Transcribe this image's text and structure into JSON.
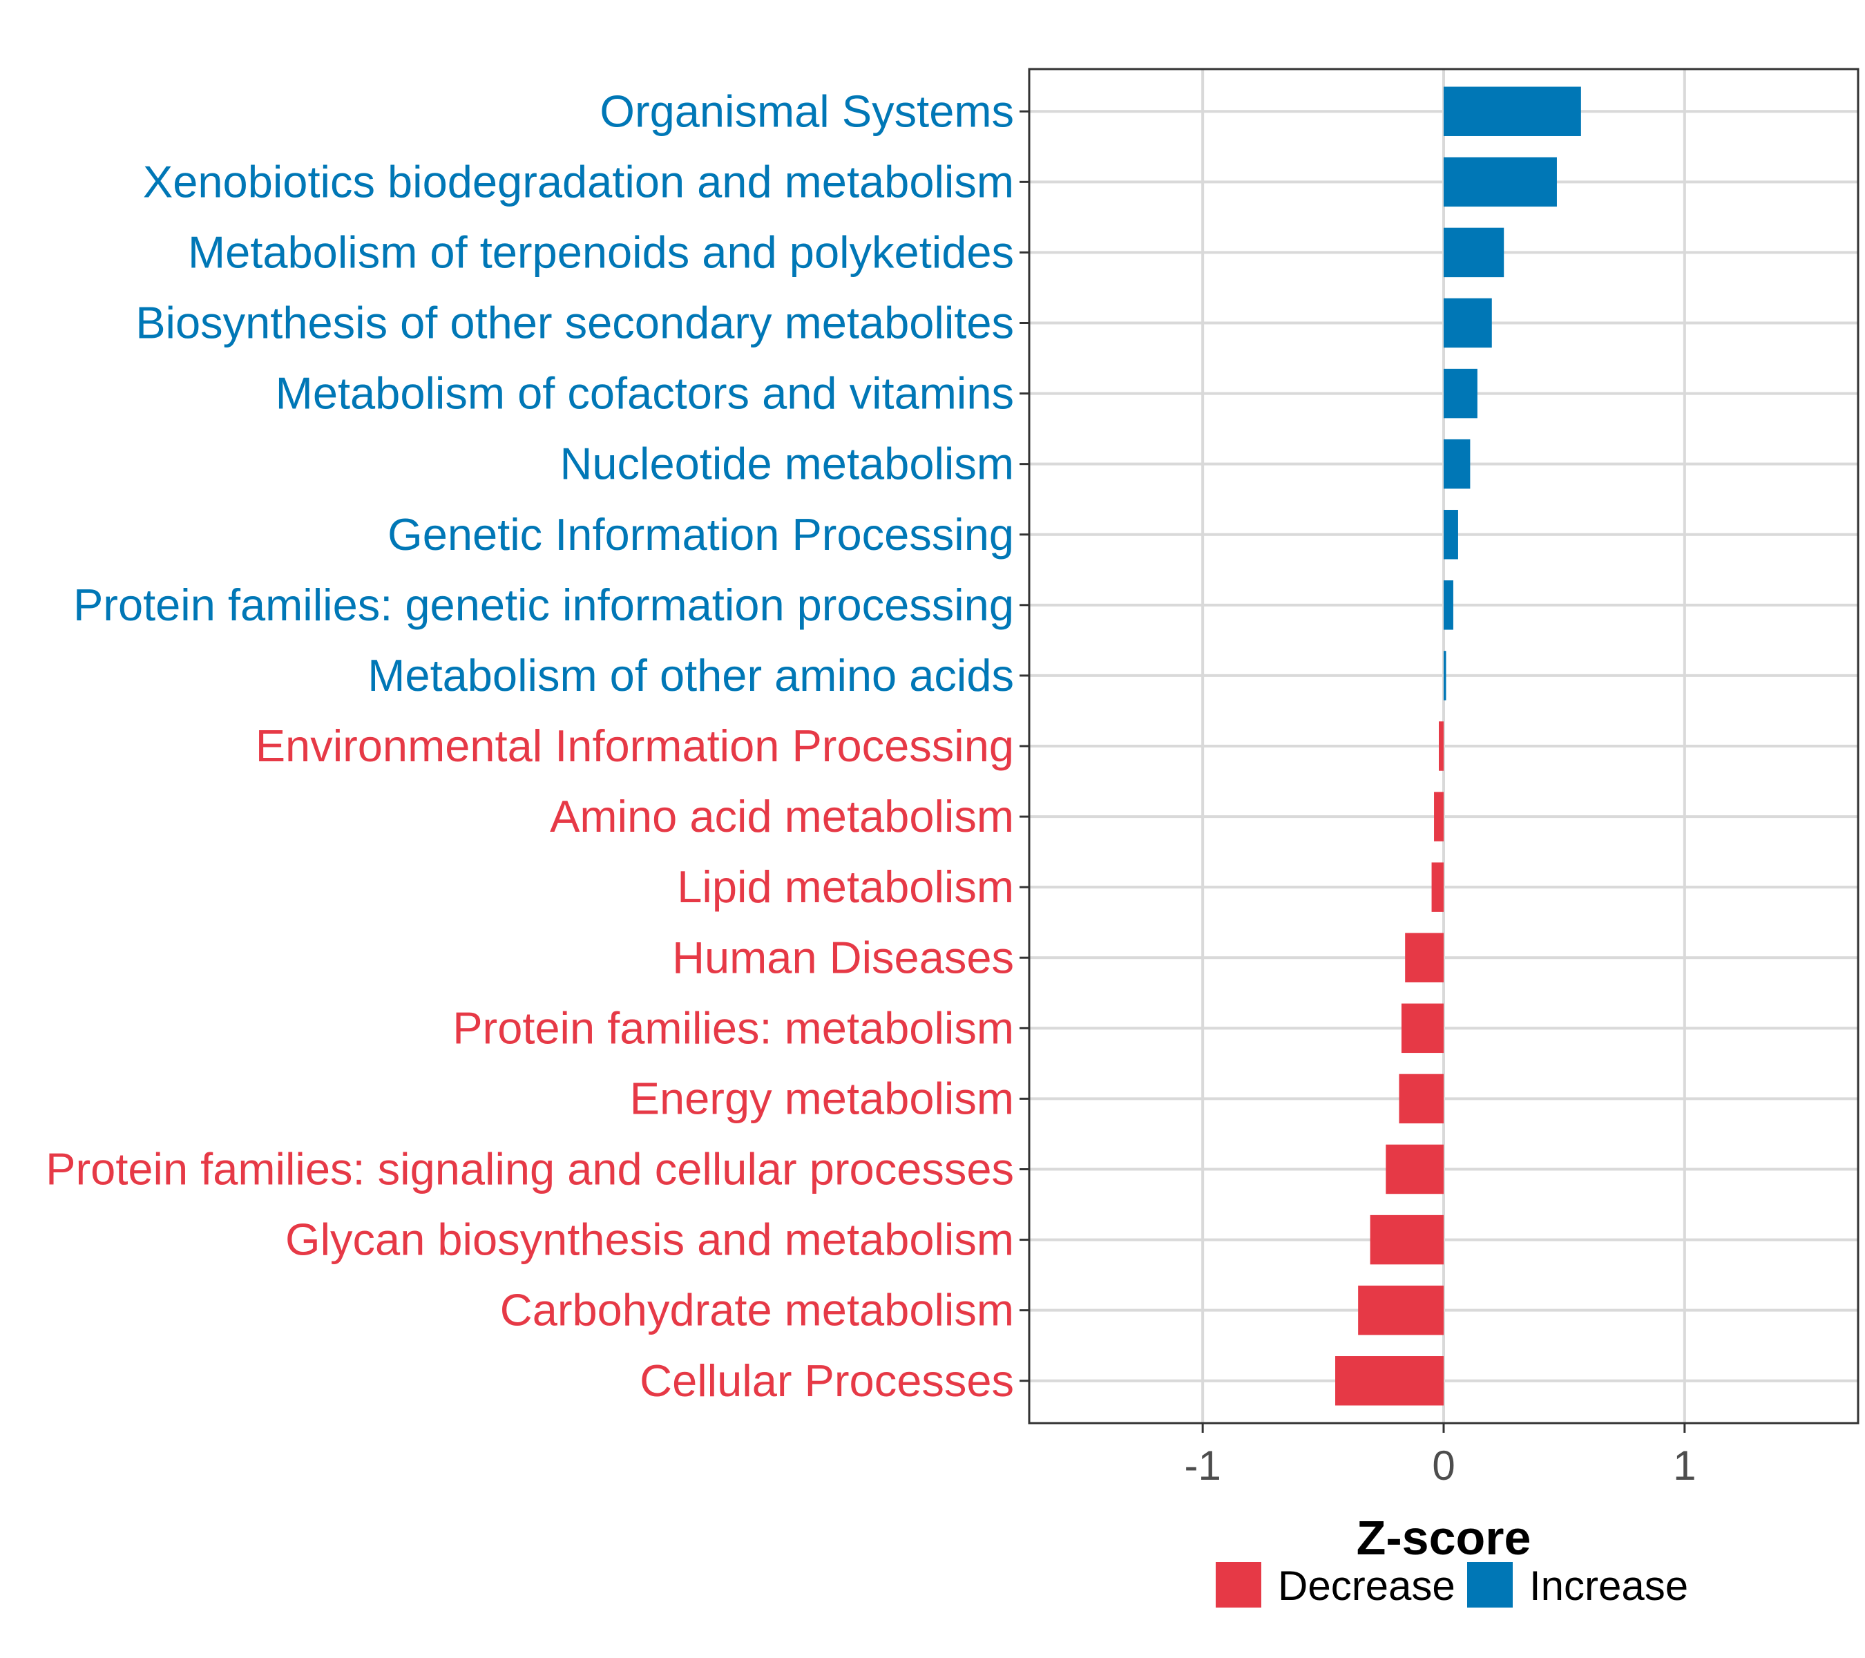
{
  "chart_data": {
    "type": "bar",
    "orientation": "horizontal",
    "categories": [
      "Organismal Systems",
      "Xenobiotics biodegradation and metabolism",
      "Metabolism of terpenoids and polyketides",
      "Biosynthesis of other secondary metabolites",
      "Metabolism of cofactors and vitamins",
      "Nucleotide metabolism",
      "Genetic Information Processing",
      "Protein families: genetic information processing",
      "Metabolism of other amino acids",
      "Environmental Information Processing",
      "Amino acid metabolism",
      "Lipid metabolism",
      "Human Diseases",
      "Protein families: metabolism",
      "Energy metabolism",
      "Protein families: signaling and cellular processes",
      "Glycan biosynthesis and metabolism",
      "Carbohydrate metabolism",
      "Cellular Processes"
    ],
    "values": [
      0.57,
      0.47,
      0.25,
      0.2,
      0.14,
      0.11,
      0.06,
      0.04,
      0.01,
      -0.02,
      -0.04,
      -0.05,
      -0.16,
      -0.175,
      -0.185,
      -0.24,
      -0.305,
      -0.355,
      -0.45
    ],
    "xlabel": "Z-score",
    "xlim": [
      -1.72,
      1.72
    ],
    "xticks": [
      -1,
      0,
      1
    ],
    "xtick_labels": [
      "-1",
      "0",
      "1"
    ],
    "grid": true,
    "legend": {
      "placement": "bottom",
      "items": [
        {
          "label": "Decrease",
          "color": "#e63946"
        },
        {
          "label": "Increase",
          "color": "#0077b6"
        }
      ]
    },
    "colors": {
      "increase": "#0077b6",
      "decrease": "#e63946"
    }
  }
}
